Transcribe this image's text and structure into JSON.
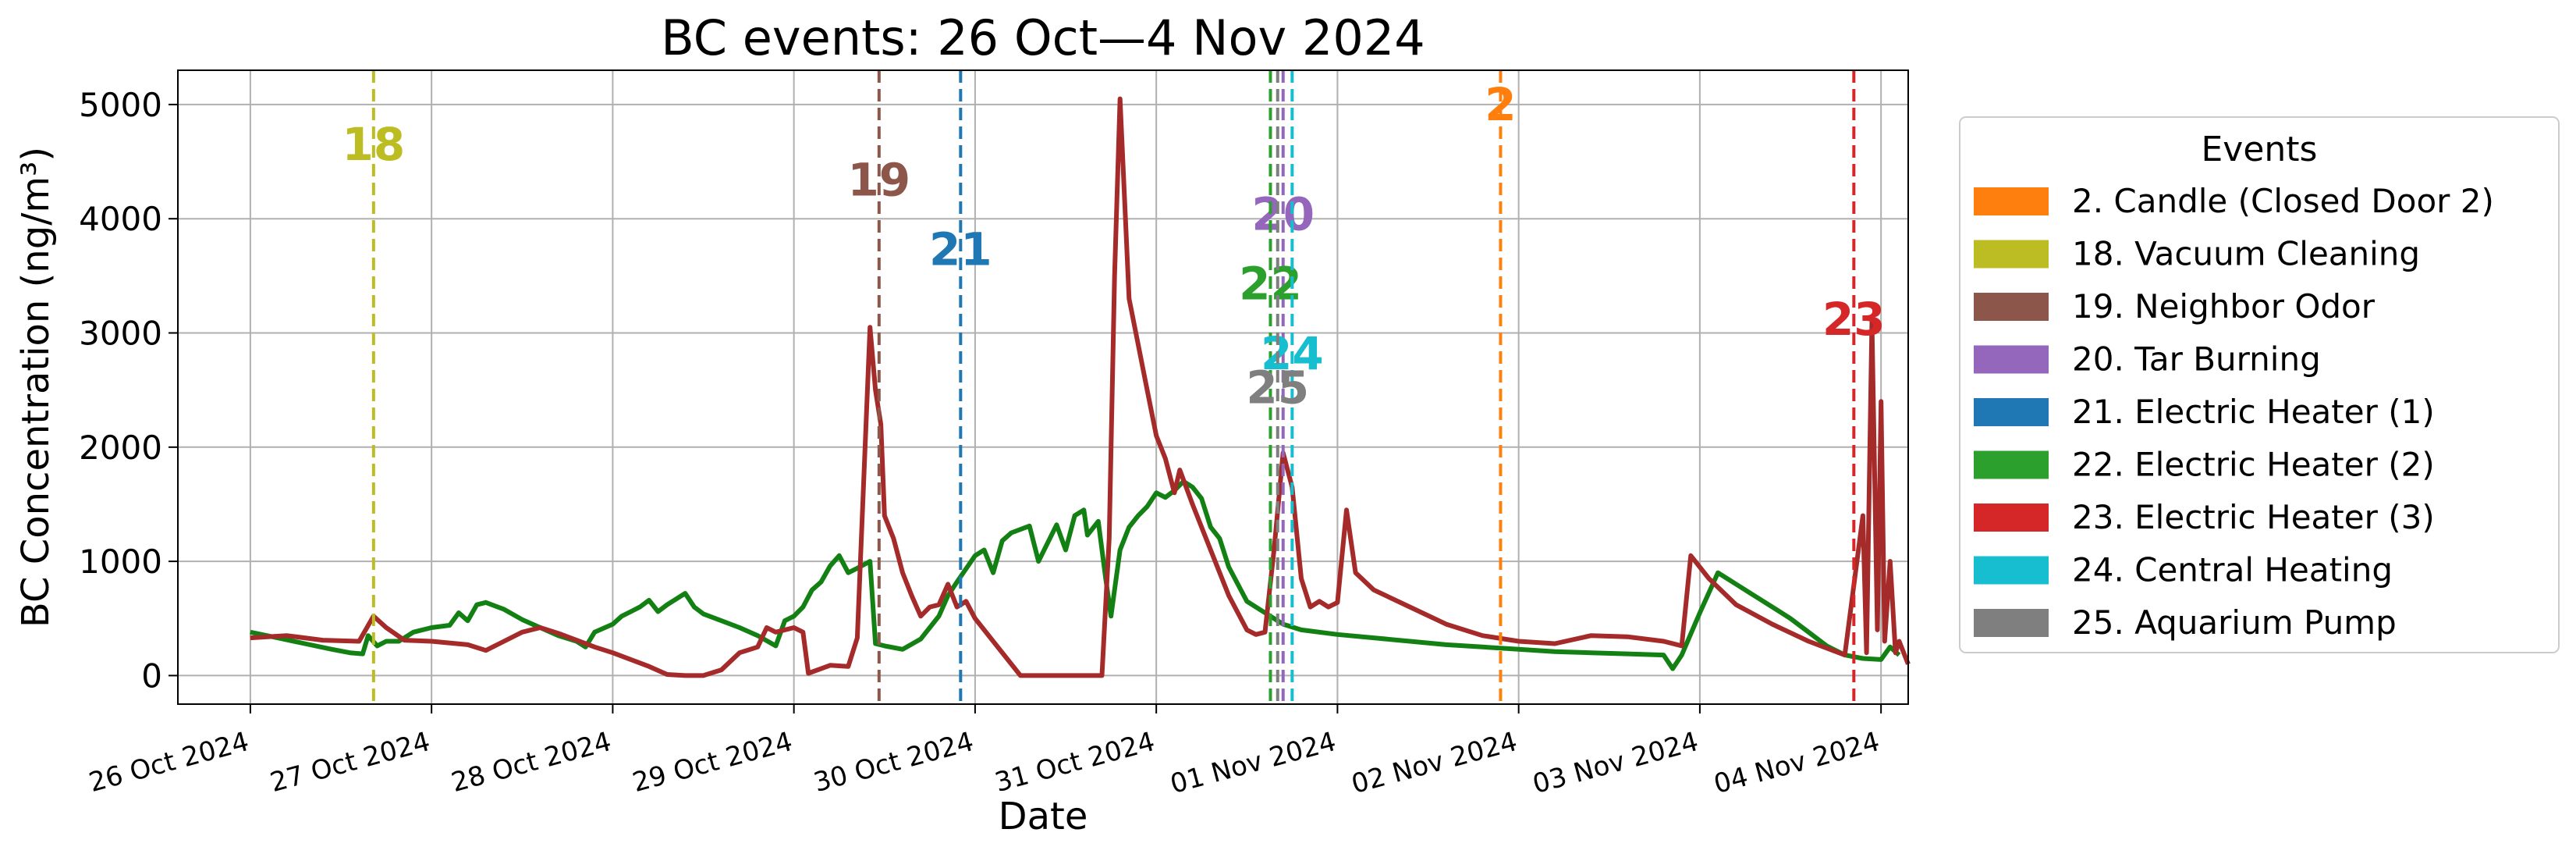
{
  "chart_data": {
    "type": "line",
    "title": "BC events: 26 Oct—4 Nov 2024",
    "xlabel": "Date",
    "ylabel": "BC Concentration (ng/m³)",
    "x_unit": "days since 26 Oct 2024 00:00",
    "xlim": [
      -0.4,
      9.15
    ],
    "ylim": [
      -250,
      5300
    ],
    "grid": true,
    "legend_placement": "outside right",
    "legend_title": "Events",
    "y_ticks": [
      0,
      1000,
      2000,
      3000,
      4000,
      5000
    ],
    "x_ticks": [
      {
        "x": 0,
        "label": "26 Oct 2024"
      },
      {
        "x": 1,
        "label": "27 Oct 2024"
      },
      {
        "x": 2,
        "label": "28 Oct 2024"
      },
      {
        "x": 3,
        "label": "29 Oct 2024"
      },
      {
        "x": 4,
        "label": "30 Oct 2024"
      },
      {
        "x": 5,
        "label": "31 Oct 2024"
      },
      {
        "x": 6,
        "label": "01 Nov 2024"
      },
      {
        "x": 7,
        "label": "02 Nov 2024"
      },
      {
        "x": 8,
        "label": "03 Nov 2024"
      },
      {
        "x": 9,
        "label": "04 Nov 2024"
      }
    ],
    "series": [
      {
        "color": "#138013",
        "points": [
          [
            0,
            380
          ],
          [
            0.15,
            330
          ],
          [
            0.3,
            280
          ],
          [
            0.45,
            230
          ],
          [
            0.55,
            200
          ],
          [
            0.62,
            190
          ],
          [
            0.65,
            350
          ],
          [
            0.7,
            260
          ],
          [
            0.75,
            300
          ],
          [
            0.82,
            300
          ],
          [
            0.9,
            380
          ],
          [
            1.0,
            420
          ],
          [
            1.1,
            440
          ],
          [
            1.15,
            550
          ],
          [
            1.2,
            480
          ],
          [
            1.25,
            620
          ],
          [
            1.3,
            640
          ],
          [
            1.4,
            580
          ],
          [
            1.5,
            490
          ],
          [
            1.6,
            420
          ],
          [
            1.7,
            350
          ],
          [
            1.8,
            300
          ],
          [
            1.85,
            250
          ],
          [
            1.9,
            380
          ],
          [
            2.0,
            450
          ],
          [
            2.05,
            520
          ],
          [
            2.1,
            560
          ],
          [
            2.15,
            600
          ],
          [
            2.2,
            660
          ],
          [
            2.25,
            560
          ],
          [
            2.3,
            620
          ],
          [
            2.4,
            720
          ],
          [
            2.45,
            600
          ],
          [
            2.5,
            540
          ],
          [
            2.6,
            480
          ],
          [
            2.7,
            420
          ],
          [
            2.8,
            350
          ],
          [
            2.9,
            260
          ],
          [
            2.95,
            480
          ],
          [
            3.0,
            520
          ],
          [
            3.05,
            600
          ],
          [
            3.1,
            750
          ],
          [
            3.15,
            820
          ],
          [
            3.2,
            960
          ],
          [
            3.25,
            1050
          ],
          [
            3.3,
            900
          ],
          [
            3.35,
            940
          ],
          [
            3.42,
            1000
          ],
          [
            3.45,
            280
          ],
          [
            3.5,
            260
          ],
          [
            3.6,
            230
          ],
          [
            3.7,
            320
          ],
          [
            3.8,
            520
          ],
          [
            3.85,
            700
          ],
          [
            3.9,
            820
          ],
          [
            4.0,
            1050
          ],
          [
            4.05,
            1100
          ],
          [
            4.1,
            900
          ],
          [
            4.15,
            1180
          ],
          [
            4.2,
            1250
          ],
          [
            4.3,
            1310
          ],
          [
            4.35,
            1000
          ],
          [
            4.45,
            1320
          ],
          [
            4.5,
            1100
          ],
          [
            4.55,
            1400
          ],
          [
            4.6,
            1450
          ],
          [
            4.62,
            1230
          ],
          [
            4.68,
            1350
          ],
          [
            4.72,
            860
          ],
          [
            4.75,
            520
          ],
          [
            4.8,
            1100
          ],
          [
            4.85,
            1300
          ],
          [
            4.9,
            1400
          ],
          [
            4.95,
            1480
          ],
          [
            5.0,
            1600
          ],
          [
            5.05,
            1560
          ],
          [
            5.1,
            1620
          ],
          [
            5.15,
            1700
          ],
          [
            5.2,
            1650
          ],
          [
            5.25,
            1550
          ],
          [
            5.3,
            1300
          ],
          [
            5.35,
            1200
          ],
          [
            5.4,
            950
          ],
          [
            5.45,
            800
          ],
          [
            5.5,
            650
          ],
          [
            5.6,
            550
          ],
          [
            5.65,
            500
          ],
          [
            5.7,
            450
          ],
          [
            5.8,
            400
          ],
          [
            6.0,
            360
          ],
          [
            6.2,
            330
          ],
          [
            6.4,
            300
          ],
          [
            6.6,
            270
          ],
          [
            6.8,
            250
          ],
          [
            7.0,
            230
          ],
          [
            7.2,
            210
          ],
          [
            7.4,
            200
          ],
          [
            7.6,
            190
          ],
          [
            7.8,
            180
          ],
          [
            7.85,
            60
          ],
          [
            7.9,
            180
          ],
          [
            8.0,
            550
          ],
          [
            8.1,
            900
          ],
          [
            8.2,
            800
          ],
          [
            8.3,
            700
          ],
          [
            8.4,
            600
          ],
          [
            8.5,
            500
          ],
          [
            8.6,
            380
          ],
          [
            8.7,
            260
          ],
          [
            8.8,
            180
          ],
          [
            8.9,
            150
          ],
          [
            9.0,
            140
          ],
          [
            9.05,
            250
          ],
          [
            9.1,
            180
          ]
        ]
      },
      {
        "color": "#a52a2a",
        "points": [
          [
            0,
            330
          ],
          [
            0.2,
            350
          ],
          [
            0.4,
            310
          ],
          [
            0.6,
            300
          ],
          [
            0.68,
            520
          ],
          [
            0.75,
            420
          ],
          [
            0.85,
            310
          ],
          [
            1.0,
            300
          ],
          [
            1.2,
            270
          ],
          [
            1.3,
            220
          ],
          [
            1.4,
            300
          ],
          [
            1.5,
            380
          ],
          [
            1.6,
            420
          ],
          [
            1.7,
            370
          ],
          [
            1.8,
            310
          ],
          [
            1.9,
            250
          ],
          [
            2.0,
            200
          ],
          [
            2.1,
            140
          ],
          [
            2.2,
            80
          ],
          [
            2.3,
            10
          ],
          [
            2.4,
            0
          ],
          [
            2.5,
            0
          ],
          [
            2.6,
            50
          ],
          [
            2.7,
            200
          ],
          [
            2.8,
            250
          ],
          [
            2.85,
            420
          ],
          [
            2.9,
            380
          ],
          [
            3.0,
            420
          ],
          [
            3.05,
            380
          ],
          [
            3.08,
            20
          ],
          [
            3.15,
            60
          ],
          [
            3.2,
            90
          ],
          [
            3.3,
            80
          ],
          [
            3.35,
            330
          ],
          [
            3.42,
            3050
          ],
          [
            3.45,
            2500
          ],
          [
            3.48,
            2200
          ],
          [
            3.5,
            1400
          ],
          [
            3.55,
            1200
          ],
          [
            3.6,
            900
          ],
          [
            3.65,
            700
          ],
          [
            3.7,
            520
          ],
          [
            3.75,
            600
          ],
          [
            3.8,
            620
          ],
          [
            3.85,
            800
          ],
          [
            3.9,
            600
          ],
          [
            3.95,
            650
          ],
          [
            4.0,
            500
          ],
          [
            4.1,
            300
          ],
          [
            4.2,
            100
          ],
          [
            4.25,
            0
          ],
          [
            4.5,
            0
          ],
          [
            4.7,
            0
          ],
          [
            4.74,
            1200
          ],
          [
            4.77,
            3500
          ],
          [
            4.8,
            5050
          ],
          [
            4.85,
            3300
          ],
          [
            4.9,
            2900
          ],
          [
            4.95,
            2500
          ],
          [
            5.0,
            2100
          ],
          [
            5.05,
            1900
          ],
          [
            5.1,
            1600
          ],
          [
            5.13,
            1800
          ],
          [
            5.2,
            1500
          ],
          [
            5.3,
            1100
          ],
          [
            5.4,
            700
          ],
          [
            5.5,
            400
          ],
          [
            5.55,
            360
          ],
          [
            5.6,
            380
          ],
          [
            5.65,
            1100
          ],
          [
            5.7,
            1950
          ],
          [
            5.75,
            1650
          ],
          [
            5.8,
            850
          ],
          [
            5.85,
            600
          ],
          [
            5.9,
            650
          ],
          [
            5.95,
            600
          ],
          [
            6.0,
            640
          ],
          [
            6.05,
            1450
          ],
          [
            6.1,
            900
          ],
          [
            6.2,
            750
          ],
          [
            6.4,
            600
          ],
          [
            6.6,
            450
          ],
          [
            6.8,
            350
          ],
          [
            7.0,
            300
          ],
          [
            7.2,
            280
          ],
          [
            7.4,
            350
          ],
          [
            7.6,
            340
          ],
          [
            7.8,
            300
          ],
          [
            7.9,
            260
          ],
          [
            7.95,
            1050
          ],
          [
            8.05,
            850
          ],
          [
            8.2,
            620
          ],
          [
            8.4,
            450
          ],
          [
            8.6,
            300
          ],
          [
            8.8,
            180
          ],
          [
            8.9,
            1400
          ],
          [
            8.92,
            200
          ],
          [
            8.95,
            3100
          ],
          [
            8.98,
            400
          ],
          [
            9.0,
            2400
          ],
          [
            9.02,
            300
          ],
          [
            9.05,
            1000
          ],
          [
            9.08,
            200
          ],
          [
            9.1,
            300
          ],
          [
            9.15,
            100
          ]
        ]
      }
    ],
    "events": [
      {
        "id": "2",
        "legend_label": "2. Candle (Closed Door 2)",
        "color": "#ff7f0e",
        "x": 6.9,
        "label_y": 5000
      },
      {
        "id": "18",
        "legend_label": "18. Vacuum Cleaning",
        "color": "#bcbd22",
        "x": 0.68,
        "label_y": 4650
      },
      {
        "id": "19",
        "legend_label": "19. Neighbor Odor",
        "color": "#8c564b",
        "x": 3.47,
        "label_y": 4340
      },
      {
        "id": "20",
        "legend_label": "20. Tar Burning",
        "color": "#9467bd",
        "x": 5.7,
        "label_y": 4040
      },
      {
        "id": "21",
        "legend_label": "21. Electric Heater (1)",
        "color": "#1f77b4",
        "x": 3.92,
        "label_y": 3730
      },
      {
        "id": "22",
        "legend_label": "22. Electric Heater (2)",
        "color": "#2ca02c",
        "x": 5.63,
        "label_y": 3430
      },
      {
        "id": "23",
        "legend_label": "23. Electric Heater (3)",
        "color": "#d62728",
        "x": 8.85,
        "label_y": 3120
      },
      {
        "id": "24",
        "legend_label": "24. Central Heating",
        "color": "#17becf",
        "x": 5.75,
        "label_y": 2820
      },
      {
        "id": "25",
        "legend_label": "25. Aquarium Pump",
        "color": "#7f7f7f",
        "x": 5.67,
        "label_y": 2520
      }
    ]
  }
}
